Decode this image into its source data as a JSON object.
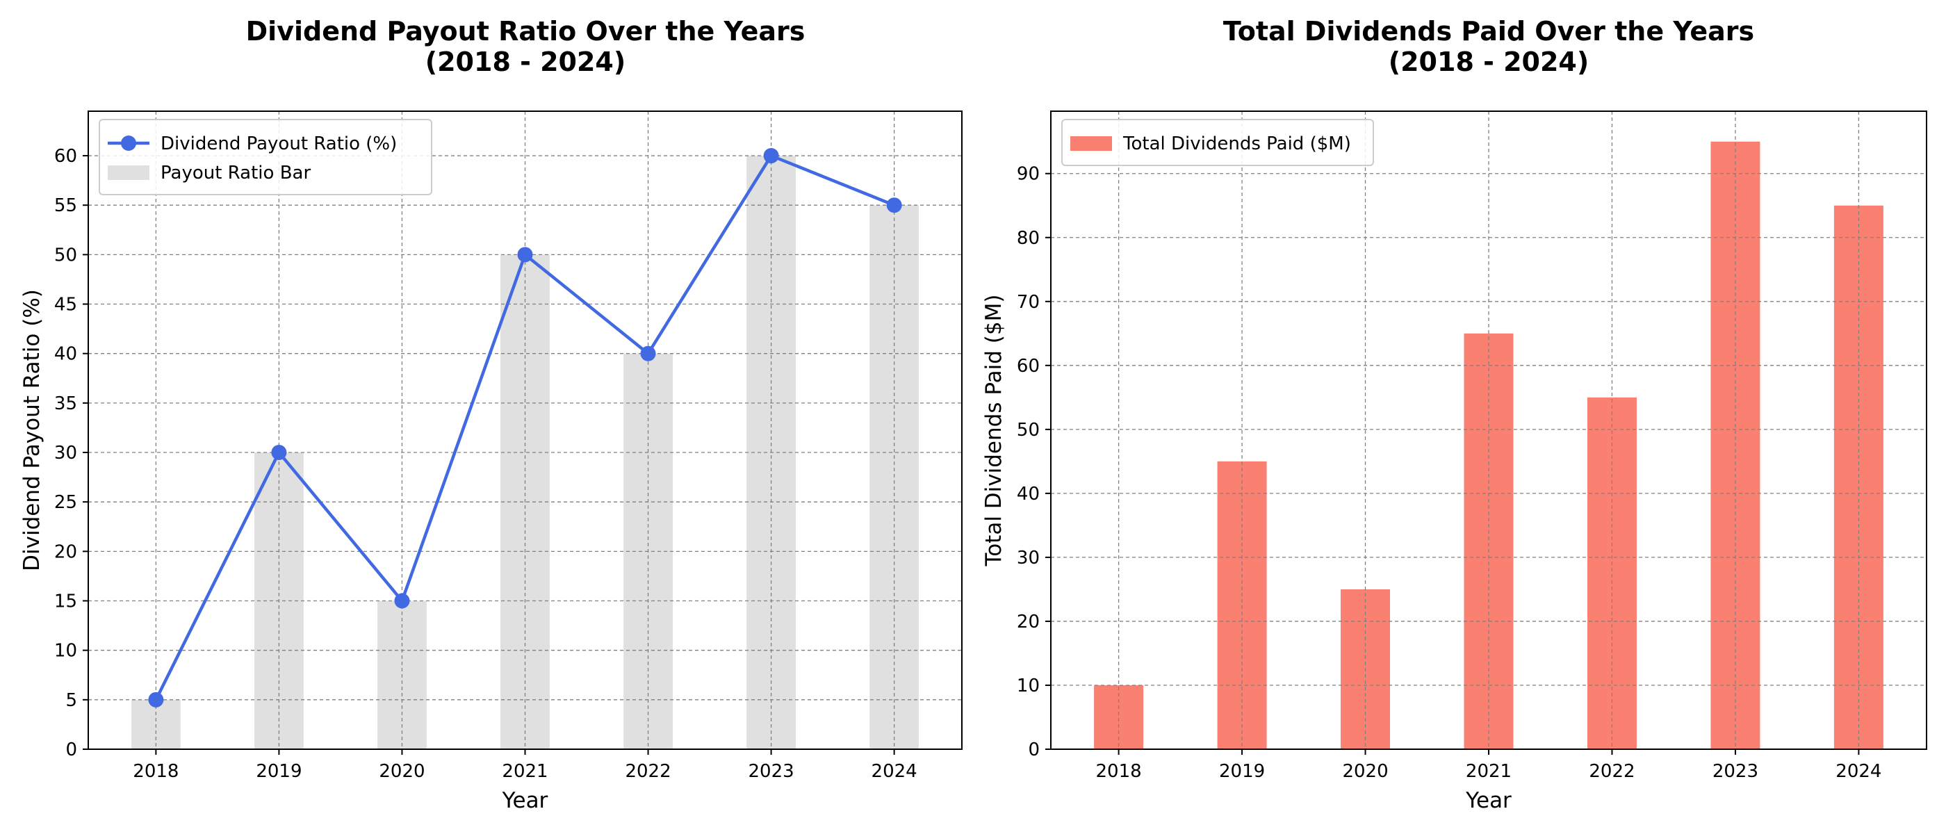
{
  "chart_data": [
    {
      "type": "line",
      "title": "Dividend Payout Ratio Over the Years\n(2018 - 2024)",
      "xlabel": "Year",
      "ylabel": "Dividend Payout Ratio (%)",
      "categories": [
        "2018",
        "2019",
        "2020",
        "2021",
        "2022",
        "2023",
        "2024"
      ],
      "series": [
        {
          "name": "Dividend Payout Ratio (%)",
          "kind": "line",
          "color": "#4169e1",
          "values": [
            5,
            30,
            15,
            50,
            40,
            60,
            55
          ]
        },
        {
          "name": "Payout Ratio Bar",
          "kind": "bar",
          "color": "#e0e0e0",
          "values": [
            5,
            30,
            15,
            50,
            40,
            60,
            55
          ]
        }
      ],
      "ylim": [
        0,
        64.5
      ],
      "yticks": [
        0,
        5,
        10,
        15,
        20,
        25,
        30,
        35,
        40,
        45,
        50,
        55,
        60
      ],
      "grid": true,
      "legend": "upper left"
    },
    {
      "type": "bar",
      "title": "Total Dividends Paid Over the Years\n(2018 - 2024)",
      "xlabel": "Year",
      "ylabel": "Total Dividends Paid ($M)",
      "categories": [
        "2018",
        "2019",
        "2020",
        "2021",
        "2022",
        "2023",
        "2024"
      ],
      "series": [
        {
          "name": "Total Dividends Paid ($M)",
          "kind": "bar",
          "color": "#fa8072",
          "values": [
            10,
            45,
            25,
            65,
            55,
            95,
            85
          ]
        }
      ],
      "ylim": [
        0,
        99.75
      ],
      "yticks": [
        0,
        10,
        20,
        30,
        40,
        50,
        60,
        70,
        80,
        90
      ],
      "grid": true,
      "legend": "upper left"
    }
  ]
}
